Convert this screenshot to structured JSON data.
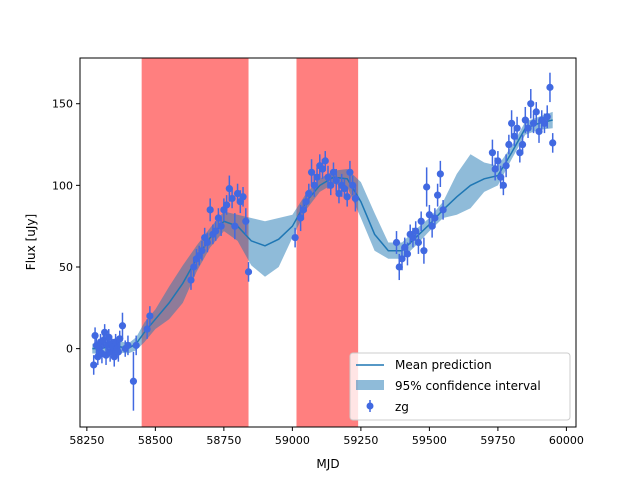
{
  "chart_data": {
    "type": "scatter",
    "title": "",
    "xlabel": "MJD",
    "ylabel": "Flux [uJy]",
    "xlim": [
      58225,
      60035
    ],
    "ylim": [
      -48,
      178
    ],
    "x_ticks": [
      58250,
      58500,
      58750,
      59000,
      59250,
      59500,
      59750,
      60000
    ],
    "y_ticks": [
      0,
      50,
      100,
      150
    ],
    "grid": false,
    "legend_position": "lower-right",
    "legend": [
      "Mean prediction",
      "95% confidence interval",
      "zg"
    ],
    "colors": {
      "mean": "#1f77b4",
      "band": "#1f77b4",
      "points": "#4169e1",
      "shade": "#ff0000"
    },
    "shaded_regions": [
      [
        58450,
        58840
      ],
      [
        59015,
        59240
      ]
    ],
    "mean_prediction": {
      "x": [
        58270,
        58300,
        58350,
        58400,
        58430,
        58460,
        58500,
        58550,
        58600,
        58650,
        58700,
        58750,
        58800,
        58850,
        58900,
        58950,
        59000,
        59050,
        59100,
        59150,
        59200,
        59250,
        59300,
        59350,
        59400,
        59450,
        59500,
        59550,
        59600,
        59650,
        59700,
        59750,
        59800,
        59850,
        59900,
        59950
      ],
      "y": [
        0,
        0,
        2,
        0,
        3,
        10,
        18,
        28,
        40,
        55,
        68,
        78,
        75,
        66,
        63,
        67,
        75,
        90,
        100,
        105,
        104,
        90,
        70,
        60,
        60,
        68,
        76,
        85,
        93,
        100,
        104,
        106,
        120,
        135,
        138,
        140
      ]
    },
    "confidence_interval": {
      "x": [
        58270,
        58300,
        58350,
        58400,
        58430,
        58460,
        58500,
        58550,
        58600,
        58650,
        58700,
        58750,
        58800,
        58850,
        58900,
        58950,
        59000,
        59050,
        59100,
        59150,
        59200,
        59250,
        59300,
        59350,
        59400,
        59450,
        59500,
        59550,
        59600,
        59650,
        59700,
        59750,
        59800,
        59850,
        59900,
        59950
      ],
      "lower": [
        -3,
        -3,
        -2,
        -3,
        -1,
        4,
        12,
        18,
        28,
        47,
        62,
        72,
        66,
        51,
        44,
        50,
        68,
        85,
        96,
        101,
        99,
        80,
        60,
        55,
        55,
        63,
        72,
        80,
        82,
        86,
        96,
        100,
        116,
        131,
        134,
        135
      ],
      "upper": [
        3,
        3,
        6,
        3,
        7,
        16,
        24,
        38,
        51,
        63,
        74,
        84,
        82,
        80,
        78,
        80,
        82,
        95,
        104,
        109,
        110,
        102,
        83,
        65,
        65,
        73,
        80,
        90,
        107,
        119,
        114,
        112,
        124,
        139,
        142,
        145
      ]
    },
    "series": [
      {
        "name": "zg",
        "x": [
          58275,
          58280,
          58285,
          58290,
          58295,
          58300,
          58305,
          58310,
          58315,
          58320,
          58325,
          58330,
          58335,
          58340,
          58345,
          58350,
          58355,
          58360,
          58365,
          58370,
          58380,
          58390,
          58400,
          58420,
          58430,
          58470,
          58480,
          58630,
          58640,
          58650,
          58660,
          58670,
          58680,
          58690,
          58700,
          58710,
          58720,
          58730,
          58740,
          58750,
          58760,
          58770,
          58780,
          58790,
          58800,
          58810,
          58820,
          58830,
          58840,
          59010,
          59030,
          59040,
          59050,
          59060,
          59070,
          59080,
          59090,
          59100,
          59110,
          59120,
          59130,
          59140,
          59150,
          59160,
          59170,
          59180,
          59190,
          59200,
          59210,
          59220,
          59230,
          59380,
          59390,
          59400,
          59410,
          59420,
          59430,
          59440,
          59450,
          59460,
          59470,
          59480,
          59490,
          59500,
          59510,
          59520,
          59530,
          59540,
          59550,
          59730,
          59740,
          59750,
          59760,
          59770,
          59780,
          59790,
          59800,
          59810,
          59820,
          59830,
          59840,
          59850,
          59860,
          59870,
          59880,
          59890,
          59900,
          59910,
          59920,
          59930,
          59940,
          59950
        ],
        "y": [
          -10,
          8,
          2,
          -5,
          0,
          4,
          -3,
          5,
          10,
          -4,
          2,
          7,
          -2,
          3,
          1,
          -5,
          4,
          0,
          -2,
          6,
          14,
          0,
          2,
          -20,
          2,
          12,
          20,
          42,
          50,
          55,
          57,
          60,
          68,
          65,
          85,
          70,
          72,
          80,
          75,
          85,
          88,
          98,
          92,
          75,
          95,
          90,
          93,
          78,
          47,
          68,
          80,
          85,
          90,
          95,
          108,
          100,
          105,
          112,
          110,
          115,
          105,
          100,
          108,
          103,
          95,
          100,
          98,
          93,
          108,
          100,
          92,
          65,
          50,
          55,
          62,
          58,
          70,
          68,
          72,
          65,
          78,
          60,
          99,
          82,
          75,
          80,
          94,
          107,
          85,
          120,
          110,
          115,
          105,
          100,
          112,
          125,
          138,
          130,
          135,
          120,
          125,
          140,
          135,
          150,
          138,
          145,
          133,
          140,
          138,
          142,
          160,
          126
        ],
        "yerr": [
          6,
          5,
          6,
          5,
          6,
          5,
          6,
          5,
          5,
          6,
          5,
          5,
          6,
          5,
          5,
          6,
          5,
          5,
          6,
          5,
          8,
          5,
          6,
          18,
          6,
          6,
          6,
          6,
          6,
          6,
          6,
          6,
          6,
          6,
          7,
          6,
          6,
          6,
          6,
          7,
          6,
          8,
          6,
          8,
          6,
          7,
          6,
          8,
          6,
          6,
          8,
          6,
          6,
          6,
          8,
          7,
          6,
          7,
          6,
          6,
          7,
          6,
          6,
          7,
          6,
          7,
          6,
          6,
          7,
          6,
          8,
          7,
          8,
          7,
          6,
          7,
          6,
          6,
          6,
          7,
          6,
          8,
          12,
          6,
          7,
          6,
          7,
          8,
          6,
          8,
          7,
          6,
          7,
          6,
          7,
          6,
          8,
          6,
          7,
          6,
          6,
          8,
          6,
          9,
          6,
          6,
          7,
          6,
          6,
          7,
          9,
          6
        ]
      }
    ]
  }
}
